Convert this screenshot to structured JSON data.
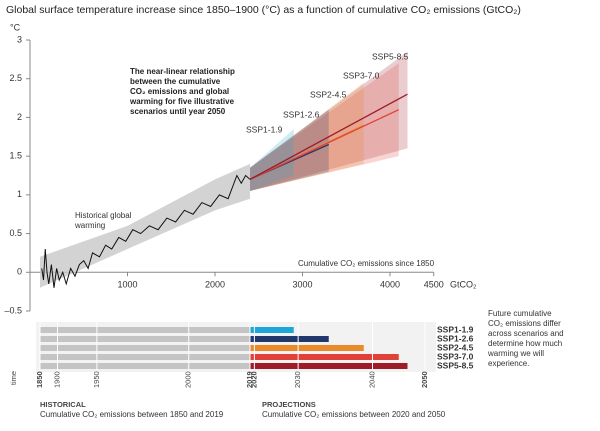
{
  "chart_data": {
    "type": "line",
    "title": "Global surface temperature increase since 1850–1900 (°C) as a function of cumulative CO₂ emissions (GtCO₂)",
    "y_label": "°C",
    "x_unit": "GtCO₂",
    "x_label": "Cumulative CO₂ emissions since 1850",
    "annotation": [
      "The near-linear relationship",
      "between the cumulative",
      "CO₂ emissions and global",
      "warming for five illustrative",
      "scenarios until year 2050"
    ],
    "historical_label": [
      "Historical global",
      "warming"
    ],
    "xlim": [
      0,
      4500
    ],
    "ylim": [
      -0.5,
      3
    ],
    "xticks": [
      1000,
      2000,
      3000,
      4000,
      4500
    ],
    "yticks": [
      {
        "value": -0.5,
        "label": "–0.5"
      },
      0,
      0.5,
      1,
      1.5,
      2,
      2.5,
      3
    ],
    "historical": {
      "color": "#111111",
      "x": [
        20,
        40,
        60,
        80,
        100,
        130,
        160,
        190,
        220,
        260,
        300,
        350,
        400,
        450,
        500,
        550,
        600,
        680,
        750,
        820,
        900,
        980,
        1060,
        1150,
        1250,
        1350,
        1450,
        1550,
        1650,
        1750,
        1850,
        1950,
        2050,
        2150,
        2250,
        2300,
        2350,
        2400
      ],
      "values": [
        0.05,
        -0.1,
        0.3,
        0.0,
        -0.15,
        0.1,
        -0.2,
        0.05,
        -0.1,
        0.0,
        -0.15,
        0.05,
        -0.05,
        0.1,
        0.15,
        0.05,
        0.25,
        0.2,
        0.35,
        0.3,
        0.45,
        0.4,
        0.55,
        0.5,
        0.6,
        0.55,
        0.7,
        0.65,
        0.8,
        0.75,
        0.9,
        0.85,
        1.0,
        0.95,
        1.25,
        1.15,
        1.25,
        1.2
      ]
    },
    "hist_band": {
      "color": "#c8c8c8",
      "x": [
        0,
        1000,
        2000,
        2400
      ],
      "low": [
        -0.2,
        0.3,
        0.8,
        0.95
      ],
      "high": [
        0.2,
        0.6,
        1.2,
        1.4
      ]
    },
    "series": [
      {
        "name": "SSP1-1.9",
        "color": "#1ea6d8",
        "x": [
          2400,
          2900
        ],
        "values": [
          1.2,
          1.5
        ],
        "low": [
          1.05,
          1.25
        ],
        "high": [
          1.35,
          1.85
        ]
      },
      {
        "name": "SSP1-2.6",
        "color": "#22376b",
        "x": [
          2400,
          3300
        ],
        "values": [
          1.2,
          1.65
        ],
        "low": [
          1.05,
          1.3
        ],
        "high": [
          1.35,
          2.1
        ]
      },
      {
        "name": "SSP2-4.5",
        "color": "#ea8a2a",
        "x": [
          2400,
          3700
        ],
        "values": [
          1.2,
          1.9
        ],
        "low": [
          1.05,
          1.4
        ],
        "high": [
          1.35,
          2.45
        ]
      },
      {
        "name": "SSP3-7.0",
        "color": "#e04238",
        "x": [
          2400,
          4100
        ],
        "values": [
          1.2,
          2.1
        ],
        "low": [
          1.05,
          1.5
        ],
        "high": [
          1.35,
          2.7
        ]
      },
      {
        "name": "SSP5-8.5",
        "color": "#9e1b28",
        "x": [
          2400,
          4200
        ],
        "values": [
          1.2,
          2.3
        ],
        "low": [
          1.05,
          1.6
        ],
        "high": [
          1.35,
          2.85
        ]
      }
    ],
    "timeline": {
      "axis_label": "time",
      "years": [
        "1850",
        "1900",
        "1950",
        "2000",
        "2019",
        "2020",
        "2030",
        "2040",
        "2050"
      ],
      "cumulative": [
        0,
        200,
        650,
        1700,
        2400,
        2450,
        2950,
        3800,
        4400
      ]
    },
    "side_note": [
      "Future cumulative",
      "CO₂ emissions differ",
      "across scenarios and",
      "determine how much",
      "warming we will",
      "experience."
    ],
    "historical_heading": "HISTORICAL",
    "historical_caption": "Cumulative CO₂ emissions between 1850 and 2019",
    "projections_heading": "PROJECTIONS",
    "projections_caption": "Cumulative CO₂ emissions between 2020 and 2050"
  }
}
